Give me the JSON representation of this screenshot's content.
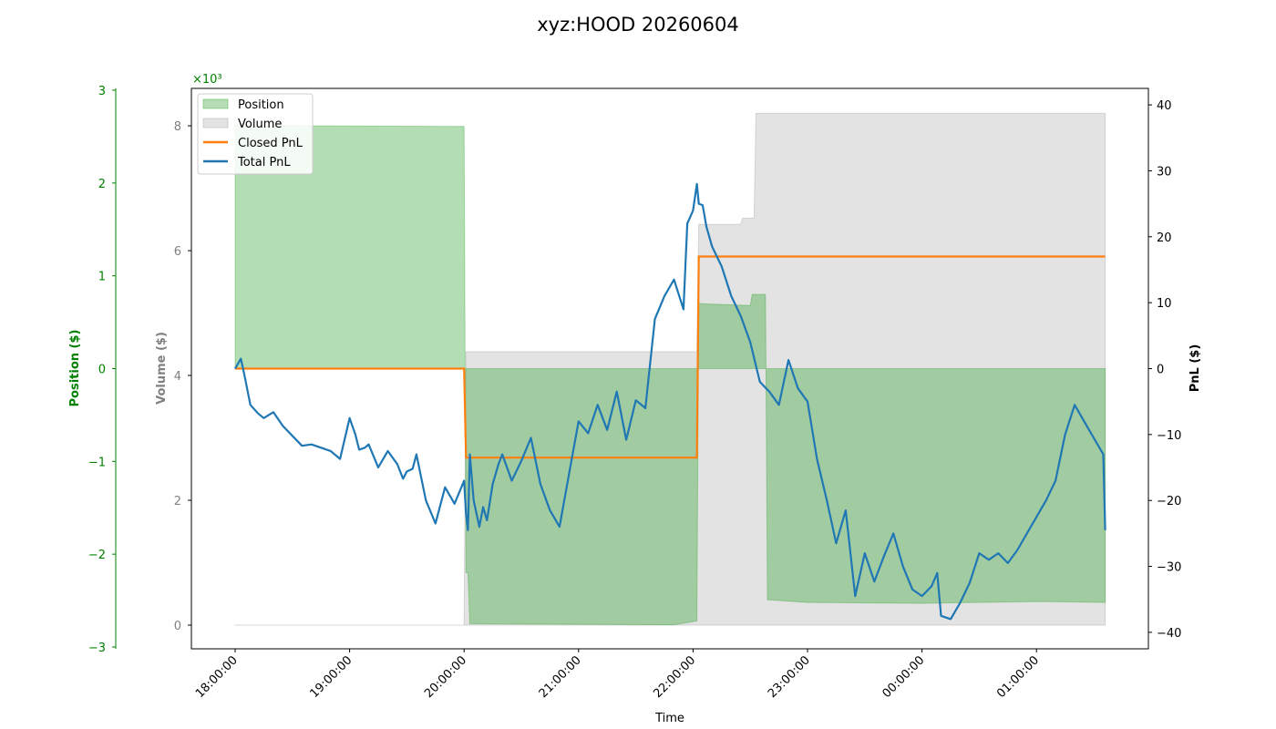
{
  "chart_data": {
    "type": "line",
    "title": "xyz:HOOD 20260604",
    "xlabel": "Time",
    "x_ticks": [
      "18:00:00",
      "19:00:00",
      "20:00:00",
      "21:00:00",
      "22:00:00",
      "23:00:00",
      "00:00:00",
      "01:00:00"
    ],
    "axes": {
      "position": {
        "label": "Position ($)",
        "color": "#008000",
        "ylim": [
          -3000,
          3000
        ],
        "ticks": [
          -3,
          -2,
          -1,
          0,
          1,
          2,
          3
        ],
        "multiplier": "×10³"
      },
      "volume": {
        "label": "Volume ($)",
        "color": "#808080",
        "ylim": [
          -380,
          8600
        ],
        "ticks": [
          0,
          2000,
          4000,
          6000,
          8000
        ],
        "tick_labels": [
          "0",
          "2",
          "4",
          "6",
          "8"
        ]
      },
      "pnl": {
        "label": "PnL ($)",
        "color": "#000000",
        "ylim": [
          -42.5,
          42.5
        ],
        "ticks": [
          -40,
          -30,
          -20,
          -10,
          0,
          10,
          20,
          30,
          40
        ]
      }
    },
    "legend": {
      "placement": "top-left",
      "entries": [
        "Position",
        "Volume",
        "Closed PnL",
        "Total PnL"
      ]
    },
    "colors": {
      "position": "#2ca02c",
      "volume": "#c8c8c8",
      "closed_pnl": "#ff7f0e",
      "total_pnl": "#1f77b4"
    },
    "series": [
      {
        "name": "Position",
        "axis": "position",
        "x": [
          "18:00",
          "20:00",
          "20:01",
          "20:02",
          "20:03",
          "21:50",
          "22:02",
          "22:03",
          "22:30",
          "22:31",
          "22:38",
          "22:39",
          "23:00",
          "00:00",
          "01:00",
          "01:36"
        ],
        "values": [
          2620,
          2610,
          -2200,
          -2200,
          -2750,
          -2760,
          -2720,
          700,
          680,
          800,
          800,
          -2490,
          -2520,
          -2530,
          -2510,
          -2520
        ]
      },
      {
        "name": "Volume",
        "axis": "volume",
        "x": [
          "18:00",
          "20:00",
          "20:01",
          "22:02",
          "22:03",
          "22:25",
          "22:26",
          "22:32",
          "22:33",
          "22:34",
          "01:36"
        ],
        "values": [
          0,
          0,
          4380,
          4380,
          6420,
          6420,
          6520,
          6520,
          8200,
          8200,
          8200
        ]
      },
      {
        "name": "Closed PnL",
        "axis": "pnl",
        "x": [
          "18:00",
          "20:00",
          "20:01",
          "22:02",
          "22:03",
          "01:36"
        ],
        "values": [
          0,
          0,
          -13.5,
          -13.5,
          17.0,
          17.0
        ]
      },
      {
        "name": "Total PnL",
        "axis": "pnl",
        "x": [
          "18:00",
          "18:03",
          "18:05",
          "18:08",
          "18:12",
          "18:15",
          "18:20",
          "18:25",
          "18:30",
          "18:35",
          "18:40",
          "18:45",
          "18:50",
          "18:55",
          "19:00",
          "19:03",
          "19:05",
          "19:08",
          "19:10",
          "19:15",
          "19:20",
          "19:25",
          "19:28",
          "19:30",
          "19:33",
          "19:35",
          "19:40",
          "19:45",
          "19:50",
          "19:55",
          "20:00",
          "20:01",
          "20:02",
          "20:03",
          "20:05",
          "20:08",
          "20:10",
          "20:12",
          "20:15",
          "20:18",
          "20:20",
          "20:25",
          "20:30",
          "20:35",
          "20:40",
          "20:45",
          "20:50",
          "20:55",
          "21:00",
          "21:05",
          "21:10",
          "21:15",
          "21:20",
          "21:25",
          "21:30",
          "21:35",
          "21:40",
          "21:45",
          "21:50",
          "21:55",
          "21:57",
          "22:00",
          "22:02",
          "22:03",
          "22:05",
          "22:07",
          "22:10",
          "22:15",
          "22:20",
          "22:25",
          "22:30",
          "22:35",
          "22:40",
          "22:45",
          "22:50",
          "22:55",
          "23:00",
          "23:05",
          "23:10",
          "23:15",
          "23:20",
          "23:25",
          "23:30",
          "23:35",
          "23:40",
          "23:45",
          "23:50",
          "23:55",
          "00:00",
          "00:05",
          "00:08",
          "00:10",
          "00:15",
          "00:20",
          "00:25",
          "00:30",
          "00:35",
          "00:40",
          "00:45",
          "00:50",
          "00:55",
          "01:00",
          "01:05",
          "01:10",
          "01:15",
          "01:20",
          "01:25",
          "01:30",
          "01:35",
          "01:36"
        ],
        "values": [
          0,
          1.5,
          -1.2,
          -5.5,
          -6.8,
          -7.5,
          -6.6,
          -8.7,
          -10.2,
          -11.7,
          -11.5,
          -12.0,
          -12.5,
          -13.7,
          -7.5,
          -10.0,
          -12.3,
          -12.0,
          -11.5,
          -15.0,
          -12.5,
          -14.5,
          -16.7,
          -15.6,
          -15.2,
          -13.0,
          -20.0,
          -23.5,
          -18.0,
          -20.5,
          -17.0,
          -22.0,
          -24.5,
          -13.0,
          -20.0,
          -24.0,
          -21.0,
          -23.0,
          -17.5,
          -14.5,
          -13.0,
          -17.0,
          -14.0,
          -10.5,
          -17.5,
          -21.5,
          -24.0,
          -16.0,
          -8.0,
          -9.8,
          -5.5,
          -9.3,
          -3.5,
          -10.8,
          -4.8,
          -6.0,
          7.5,
          11.0,
          13.5,
          9.0,
          22.0,
          24.0,
          28.0,
          25.0,
          24.8,
          21.5,
          18.5,
          15.5,
          11.0,
          8.0,
          4.0,
          -2.0,
          -3.5,
          -5.5,
          1.3,
          -3.0,
          -5.0,
          -13.8,
          -19.8,
          -26.5,
          -21.5,
          -34.5,
          -28.0,
          -32.3,
          -28.5,
          -25.0,
          -30.0,
          -33.5,
          -34.5,
          -33.0,
          -31.0,
          -37.5,
          -38.0,
          -35.5,
          -32.5,
          -28.0,
          -29.0,
          -28.0,
          -29.5,
          -27.5,
          -25.0,
          -22.5,
          -20.0,
          -17.0,
          -10.0,
          -5.5,
          -8.0,
          -10.5,
          -13.0,
          -24.5
        ]
      }
    ]
  }
}
